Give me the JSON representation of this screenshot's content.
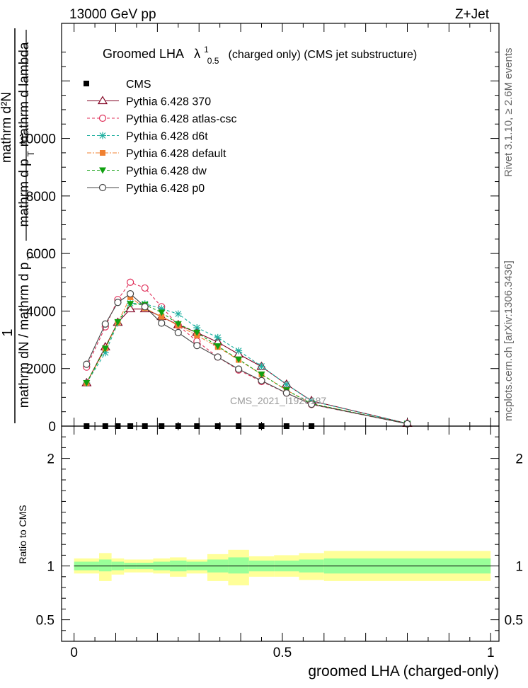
{
  "header": {
    "energy": "13000 GeV pp",
    "process": "Z+Jet"
  },
  "side": {
    "rivet": "Rivet 3.1.10, ≥ 2.6M events",
    "mcplots": "mcplots.cern.ch [arXiv:1306.3436]"
  },
  "colors": {
    "band_stat": "#99ff99",
    "band_total": "#ffff99"
  },
  "chart_data": [
    {
      "type": "line",
      "title": "Groomed LHA",
      "title_lambda": "λ",
      "title_sup": "1",
      "title_sub": "0.5",
      "title_rest": "(charged only) (CMS jet substructure)",
      "ylabel_main": "1",
      "ylabel_num": "mathrm d²N",
      "ylabel_den": "mathrm dN / mathrm d p",
      "ylabel_den_sub": "T",
      "ylabel_num2": "mathrm d p",
      "ylabel_num2_sub": "T",
      "ylabel_num2_rest": "mathrm d lambda",
      "watermark": "CMS_2021_I1920187",
      "xlim": [
        -0.03,
        1.02
      ],
      "ylim": [
        0,
        14000
      ],
      "y_ticks": [
        {
          "v": 0,
          "label": "0"
        },
        {
          "v": 2000,
          "label": "2000"
        },
        {
          "v": 4000,
          "label": "4000"
        },
        {
          "v": 6000,
          "label": "6000"
        },
        {
          "v": 8000,
          "label": "8000"
        },
        {
          "v": 10000,
          "label": "10000"
        }
      ],
      "legend_position": "top-left",
      "cms": {
        "name": "CMS",
        "x": [
          0.03,
          0.075,
          0.105,
          0.135,
          0.17,
          0.21,
          0.25,
          0.295,
          0.345,
          0.395,
          0.45,
          0.51,
          0.57
        ],
        "y": [
          0,
          0,
          0,
          0,
          0,
          0,
          0,
          0,
          0,
          0,
          0,
          0,
          0
        ]
      },
      "series": [
        {
          "name": "Pythia 6.428 370",
          "color": "#800020",
          "dash": "",
          "marker": "triangle-open",
          "x": [
            0.03,
            0.075,
            0.105,
            0.135,
            0.17,
            0.21,
            0.25,
            0.295,
            0.345,
            0.395,
            0.45,
            0.51,
            0.57,
            0.8
          ],
          "y": [
            1500,
            2750,
            3600,
            4070,
            4070,
            3800,
            3520,
            3250,
            2920,
            2500,
            2070,
            1450,
            880,
            90
          ]
        },
        {
          "name": "Pythia 6.428 atlas-csc",
          "color": "#e0305a",
          "dash": "4,3",
          "marker": "circle-open",
          "x": [
            0.03,
            0.075,
            0.105,
            0.135,
            0.17,
            0.21,
            0.25,
            0.295,
            0.345,
            0.395,
            0.45,
            0.51,
            0.57,
            0.8
          ],
          "y": [
            2050,
            3450,
            4400,
            5000,
            4800,
            4150,
            3500,
            2950,
            2400,
            1950,
            1550,
            1150,
            750,
            80
          ]
        },
        {
          "name": "Pythia 6.428 d6t",
          "color": "#20b0a0",
          "dash": "4,3",
          "marker": "star",
          "x": [
            0.03,
            0.075,
            0.105,
            0.135,
            0.17,
            0.21,
            0.25,
            0.295,
            0.345,
            0.395,
            0.45,
            0.51,
            0.57,
            0.8
          ],
          "y": [
            1500,
            2550,
            3580,
            4270,
            4250,
            4080,
            3900,
            3420,
            3080,
            2620,
            2080,
            1450,
            870,
            90
          ]
        },
        {
          "name": "Pythia 6.428 default",
          "color": "#f08030",
          "dash": "6,2,2,2",
          "marker": "square",
          "x": [
            0.03,
            0.075,
            0.105,
            0.135,
            0.17,
            0.21,
            0.25,
            0.295,
            0.345,
            0.395,
            0.45,
            0.51,
            0.57,
            0.8
          ],
          "y": [
            1500,
            2700,
            3600,
            4480,
            4100,
            3800,
            3500,
            3150,
            2750,
            2300,
            1800,
            1250,
            780,
            80
          ]
        },
        {
          "name": "Pythia 6.428 dw",
          "color": "#10a010",
          "dash": "4,3",
          "marker": "triangle-down",
          "x": [
            0.03,
            0.075,
            0.105,
            0.135,
            0.17,
            0.21,
            0.25,
            0.295,
            0.345,
            0.395,
            0.45,
            0.51,
            0.57,
            0.8
          ],
          "y": [
            1500,
            2700,
            3620,
            4250,
            4220,
            3950,
            3550,
            3250,
            2780,
            2320,
            1800,
            1250,
            780,
            80
          ]
        },
        {
          "name": "Pythia 6.428 p0",
          "color": "#444444",
          "dash": "",
          "marker": "circle-open",
          "x": [
            0.03,
            0.075,
            0.105,
            0.135,
            0.17,
            0.21,
            0.25,
            0.295,
            0.345,
            0.395,
            0.45,
            0.51,
            0.57,
            0.8
          ],
          "y": [
            2150,
            3550,
            4300,
            4600,
            4150,
            3580,
            3250,
            2800,
            2400,
            1980,
            1580,
            1150,
            760,
            80
          ]
        }
      ]
    },
    {
      "type": "area",
      "ylabel": "Ratio to CMS",
      "xlabel": "groomed LHA (charged-only)",
      "xlim": [
        -0.03,
        1.02
      ],
      "ylim": [
        0.3,
        2.3
      ],
      "x_ticks": [
        {
          "v": 0,
          "label": "0"
        },
        {
          "v": 0.5,
          "label": "0.5"
        },
        {
          "v": 1,
          "label": "1"
        }
      ],
      "y_ticks": [
        {
          "v": 0.5,
          "label": "0.5"
        },
        {
          "v": 1,
          "label": "1"
        },
        {
          "v": 2,
          "label": "2"
        }
      ],
      "reference": 1,
      "bins": [
        {
          "x0": 0.0,
          "x1": 0.06,
          "stat": [
            0.96,
            1.04
          ],
          "total": [
            0.93,
            1.07
          ]
        },
        {
          "x0": 0.06,
          "x1": 0.09,
          "stat": [
            0.95,
            1.06
          ],
          "total": [
            0.86,
            1.12
          ]
        },
        {
          "x0": 0.09,
          "x1": 0.12,
          "stat": [
            0.96,
            1.04
          ],
          "total": [
            0.92,
            1.07
          ]
        },
        {
          "x0": 0.12,
          "x1": 0.15,
          "stat": [
            0.97,
            1.03
          ],
          "total": [
            0.94,
            1.06
          ]
        },
        {
          "x0": 0.15,
          "x1": 0.19,
          "stat": [
            0.97,
            1.03
          ],
          "total": [
            0.94,
            1.06
          ]
        },
        {
          "x0": 0.19,
          "x1": 0.23,
          "stat": [
            0.96,
            1.04
          ],
          "total": [
            0.93,
            1.07
          ]
        },
        {
          "x0": 0.23,
          "x1": 0.27,
          "stat": [
            0.95,
            1.05
          ],
          "total": [
            0.9,
            1.08
          ]
        },
        {
          "x0": 0.27,
          "x1": 0.32,
          "stat": [
            0.96,
            1.04
          ],
          "total": [
            0.93,
            1.06
          ]
        },
        {
          "x0": 0.32,
          "x1": 0.37,
          "stat": [
            0.94,
            1.06
          ],
          "total": [
            0.86,
            1.11
          ]
        },
        {
          "x0": 0.37,
          "x1": 0.42,
          "stat": [
            0.93,
            1.08
          ],
          "total": [
            0.82,
            1.15
          ]
        },
        {
          "x0": 0.42,
          "x1": 0.48,
          "stat": [
            0.95,
            1.05
          ],
          "total": [
            0.9,
            1.09
          ]
        },
        {
          "x0": 0.48,
          "x1": 0.54,
          "stat": [
            0.95,
            1.05
          ],
          "total": [
            0.9,
            1.1
          ]
        },
        {
          "x0": 0.54,
          "x1": 0.6,
          "stat": [
            0.94,
            1.06
          ],
          "total": [
            0.87,
            1.12
          ]
        },
        {
          "x0": 0.6,
          "x1": 1.0,
          "stat": [
            0.93,
            1.07
          ],
          "total": [
            0.86,
            1.14
          ]
        }
      ]
    }
  ]
}
